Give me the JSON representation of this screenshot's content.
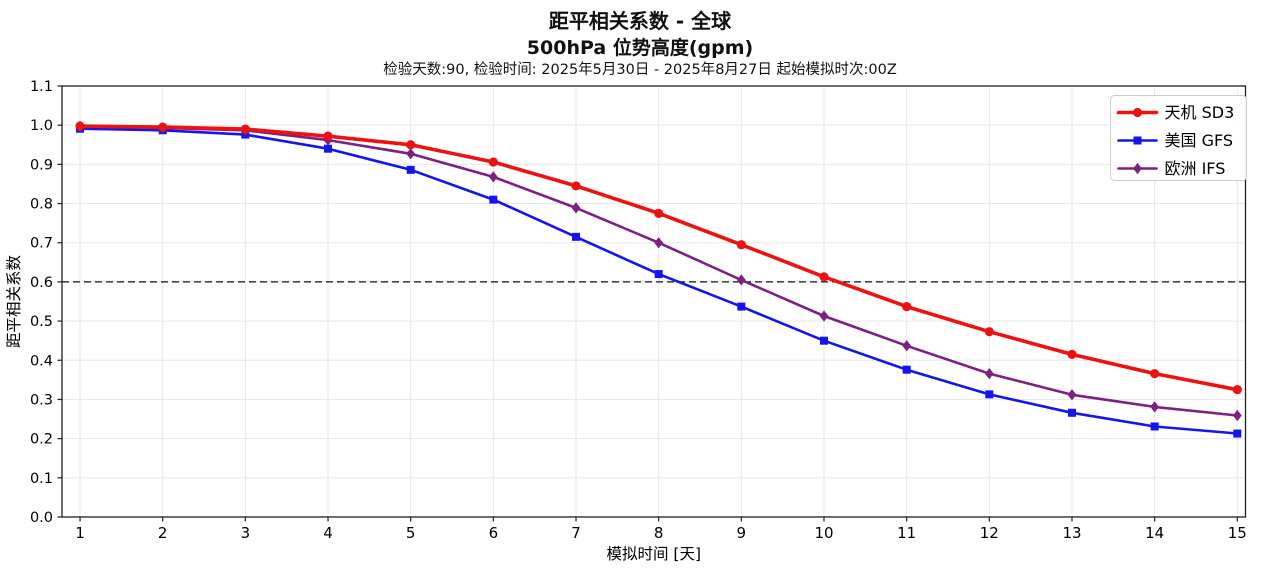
{
  "chart_data": {
    "type": "line",
    "title": "距平相关系数 - 全球",
    "subtitle": "500hPa 位势高度(gpm)",
    "info_line": "检验天数:90, 检验时间: 2025年5月30日 - 2025年8月27日 起始模拟时次:00Z",
    "xlabel": "模拟时间 [天]",
    "ylabel": "距平相关系数",
    "x": [
      1,
      2,
      3,
      4,
      5,
      6,
      7,
      8,
      9,
      10,
      11,
      12,
      13,
      14,
      15
    ],
    "xticks": [
      "1",
      "2",
      "3",
      "4",
      "5",
      "6",
      "7",
      "8",
      "9",
      "10",
      "11",
      "12",
      "13",
      "14",
      "15"
    ],
    "yticks": [
      "0.0",
      "0.1",
      "0.2",
      "0.3",
      "0.4",
      "0.5",
      "0.6",
      "0.7",
      "0.8",
      "0.9",
      "1.0",
      "1.1"
    ],
    "xlim": [
      0.782,
      15.099
    ],
    "ylim": [
      0.0,
      1.1
    ],
    "grid": true,
    "legend_position": "top-right",
    "threshold": {
      "value": 0.6,
      "style": "dashed",
      "color": "#111111"
    },
    "colors": {
      "grid": "#e7e7e7",
      "spine": "#1f1f1f",
      "legend_border": "#cccccc",
      "text": "#000000"
    },
    "series": [
      {
        "name": "天机 SD3",
        "color": "#ee1111",
        "marker": "circle",
        "line_width": 3.6,
        "values": [
          0.998,
          0.995,
          0.99,
          0.972,
          0.95,
          0.906,
          0.845,
          0.775,
          0.695,
          0.613,
          0.537,
          0.473,
          0.415,
          0.366,
          0.325
        ]
      },
      {
        "name": "美国 GFS",
        "color": "#1414ee",
        "marker": "square",
        "line_width": 2.6,
        "values": [
          0.991,
          0.987,
          0.976,
          0.94,
          0.886,
          0.81,
          0.715,
          0.62,
          0.537,
          0.45,
          0.376,
          0.313,
          0.266,
          0.231,
          0.213
        ]
      },
      {
        "name": "欧洲 IFS",
        "color": "#7d2083",
        "marker": "diamond",
        "line_width": 2.6,
        "values": [
          0.997,
          0.993,
          0.987,
          0.962,
          0.927,
          0.868,
          0.789,
          0.7,
          0.605,
          0.513,
          0.437,
          0.366,
          0.312,
          0.281,
          0.259
        ]
      }
    ]
  }
}
